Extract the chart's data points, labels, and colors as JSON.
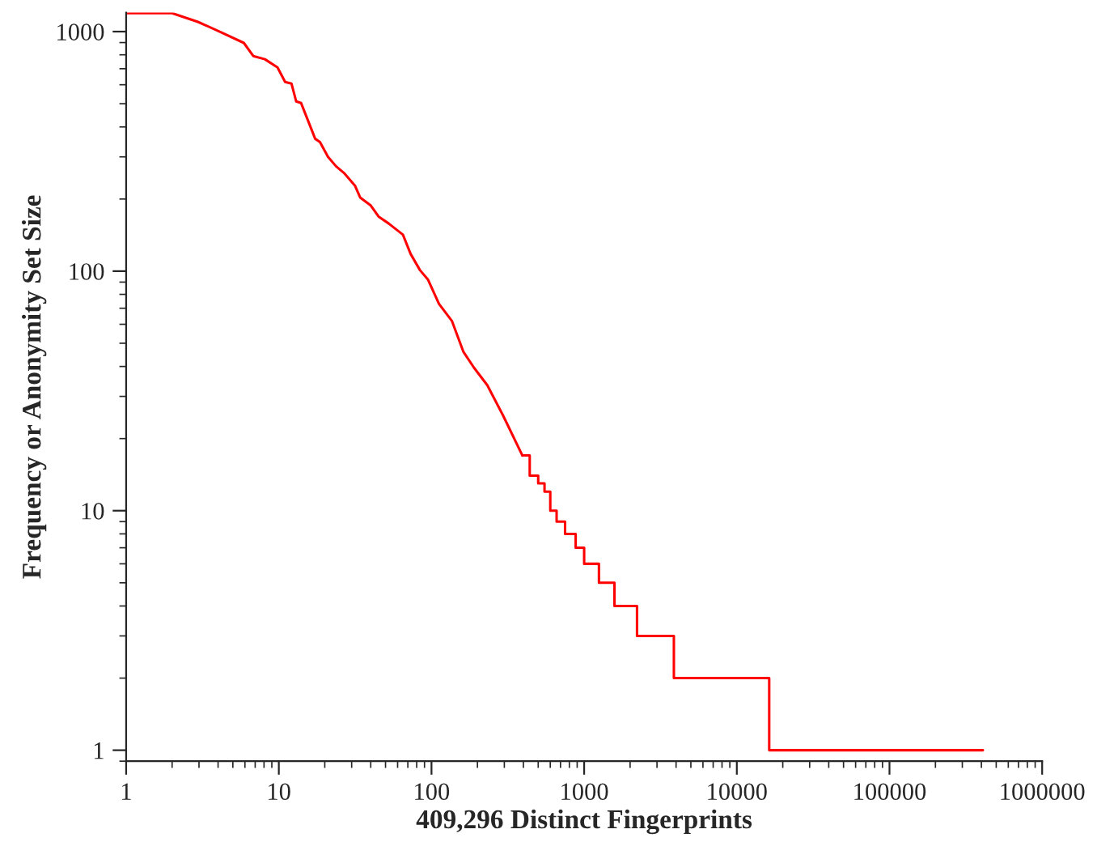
{
  "chart_data": {
    "type": "step",
    "xlabel": "409,296 Distinct Fingerprints",
    "ylabel": "Frequency or Anonymity Set Size",
    "log": "xy",
    "xlim": [
      1,
      1000000
    ],
    "ylim": [
      0.9,
      1200
    ],
    "xticks": [
      1,
      10,
      100,
      1000,
      10000,
      100000,
      1000000
    ],
    "yticks": [
      1,
      10,
      100,
      1000
    ],
    "grid": false,
    "series": [
      {
        "type": "line",
        "color": "#ff0000",
        "x": [
          1,
          2,
          2.95,
          4.1,
          5.9,
          6.8,
          8.1,
          9.8,
          11,
          12.1,
          13,
          14,
          17.3,
          18.6,
          21,
          23.7,
          26.7,
          31.6,
          34.1,
          40,
          45,
          52.5,
          65,
          73,
          84,
          95,
          112,
          136,
          162,
          190,
          232,
          294,
          394
        ],
        "values": [
          1194,
          1194,
          1098,
          1000,
          897,
          791,
          767,
          709,
          616,
          607,
          511,
          503,
          357,
          346,
          300,
          274,
          257,
          227,
          203,
          188,
          169,
          158,
          142,
          118,
          101,
          92,
          73,
          62,
          46,
          39.5,
          33.4,
          25,
          17
        ]
      },
      {
        "color": "#ff0000",
        "x": [
          394,
          440,
          500,
          550,
          600,
          660,
          750,
          880,
          1000,
          1250,
          1580,
          2220,
          3870,
          16300,
          409296
        ],
        "values": [
          17,
          14,
          13,
          12,
          10,
          9,
          8,
          7,
          6,
          5,
          4,
          3,
          2,
          1,
          1
        ]
      }
    ]
  }
}
